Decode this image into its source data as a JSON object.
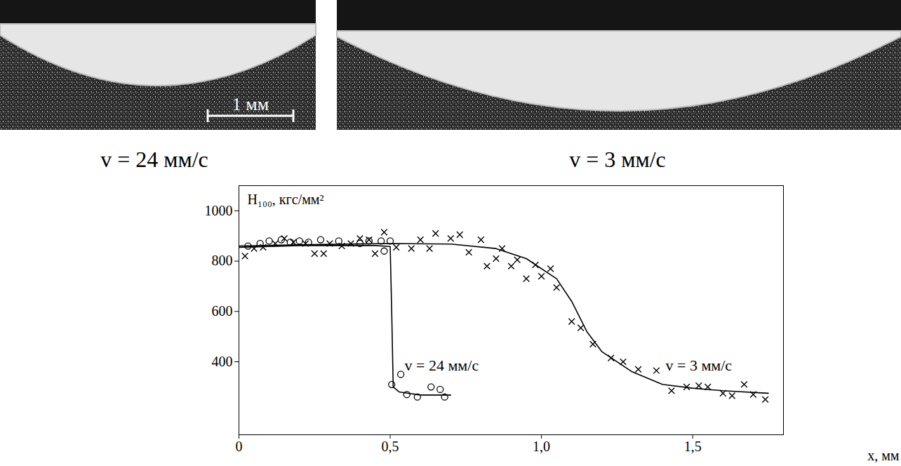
{
  "chart_data": {
    "type": "scatter",
    "xlabel": "x, мм",
    "ylabel": "H₁₀₀, кгс/мм²",
    "xlim": [
      0,
      1.8
    ],
    "ylim": [
      110,
      1100
    ],
    "xticks": [
      0,
      {
        "value": 0.5,
        "label": "0,5"
      },
      {
        "value": 1,
        "label": "1,0"
      },
      {
        "value": 1.5,
        "label": "1,5"
      }
    ],
    "yticks": [
      400,
      600,
      800,
      1000
    ],
    "grid": false,
    "series": [
      {
        "name": "v = 24 мм/с",
        "color": "#000000",
        "marker": "circle",
        "line_style": "solid",
        "label_x": 0.67,
        "label_y": 385,
        "x": [
          0.03,
          0.07,
          0.1,
          0.14,
          0.17,
          0.2,
          0.23,
          0.27,
          0.33,
          0.4,
          0.43,
          0.47,
          0.48,
          0.5,
          0.505,
          0.535,
          0.555,
          0.59,
          0.635,
          0.665,
          0.68
        ],
        "values": [
          860,
          870,
          880,
          885,
          875,
          880,
          875,
          885,
          880,
          870,
          880,
          880,
          840,
          880,
          310,
          350,
          270,
          260,
          300,
          290,
          260
        ],
        "curve_x": [
          0,
          0.2,
          0.45,
          0.5,
          0.505,
          0.51,
          0.53,
          0.6,
          0.7
        ],
        "curve_values": [
          855,
          862,
          862,
          858,
          600,
          300,
          280,
          268,
          268
        ]
      },
      {
        "name": "v = 3 мм/с",
        "color": "#000000",
        "marker": "cross",
        "line_style": "solid",
        "label_x": 1.52,
        "label_y": 385,
        "x": [
          0.02,
          0.05,
          0.08,
          0.12,
          0.15,
          0.18,
          0.22,
          0.25,
          0.28,
          0.3,
          0.34,
          0.37,
          0.4,
          0.43,
          0.45,
          0.48,
          0.52,
          0.57,
          0.6,
          0.63,
          0.65,
          0.7,
          0.73,
          0.76,
          0.8,
          0.82,
          0.85,
          0.87,
          0.9,
          0.92,
          0.95,
          0.98,
          1.0,
          1.03,
          1.05,
          1.1,
          1.13,
          1.17,
          1.23,
          1.27,
          1.32,
          1.38,
          1.43,
          1.48,
          1.52,
          1.55,
          1.6,
          1.63,
          1.67,
          1.7,
          1.74
        ],
        "values": [
          820,
          850,
          855,
          870,
          890,
          875,
          870,
          830,
          830,
          870,
          860,
          870,
          890,
          885,
          830,
          915,
          855,
          850,
          885,
          850,
          910,
          890,
          905,
          835,
          885,
          780,
          810,
          850,
          780,
          805,
          730,
          785,
          740,
          770,
          695,
          560,
          535,
          470,
          415,
          400,
          370,
          365,
          285,
          300,
          305,
          300,
          275,
          265,
          310,
          270,
          250
        ],
        "curve_x": [
          0,
          0.2,
          0.5,
          0.7,
          0.85,
          0.95,
          1.05,
          1.1,
          1.15,
          1.2,
          1.3,
          1.4,
          1.5,
          1.6,
          1.75
        ],
        "curve_values": [
          860,
          865,
          870,
          868,
          850,
          810,
          730,
          640,
          520,
          440,
          360,
          310,
          295,
          285,
          275
        ]
      }
    ]
  },
  "images": [
    {
      "caption": "v = 24 мм/с",
      "scale_bar": "1 мм"
    },
    {
      "caption": "v = 3 мм/с"
    }
  ]
}
